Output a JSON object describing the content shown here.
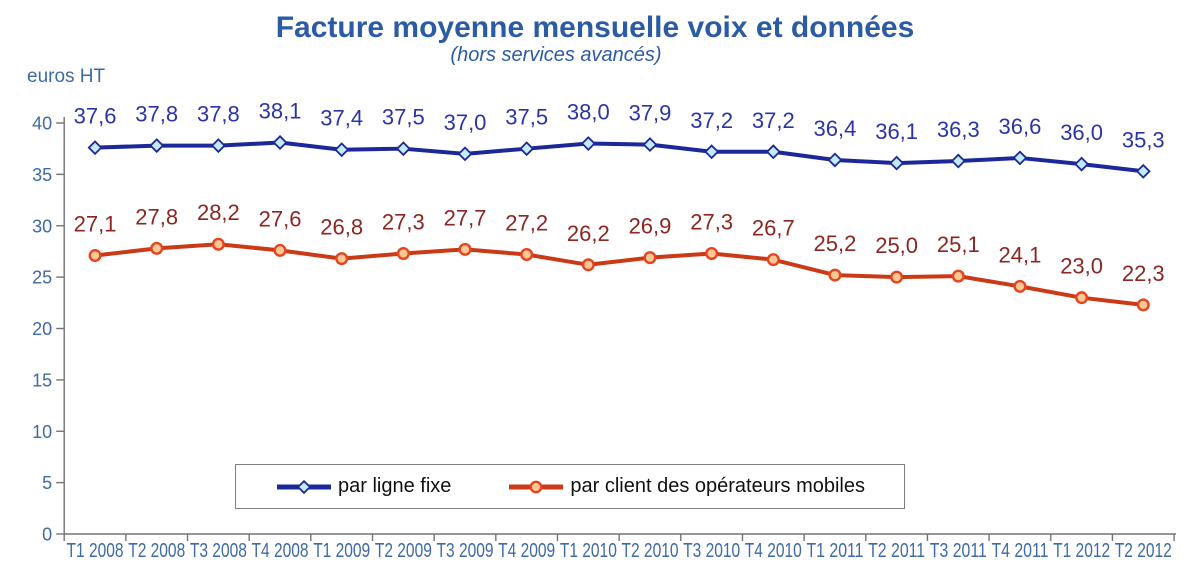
{
  "chart_data": {
    "type": "line",
    "title": "Facture moyenne mensuelle voix et données",
    "subtitle": "(hors services avancés)",
    "ylabel": "euros HT",
    "xlabel": "",
    "ylim": [
      0,
      40
    ],
    "y_ticks": [
      0,
      5,
      10,
      15,
      20,
      25,
      30,
      35,
      40
    ],
    "grid": false,
    "legend_position": "bottom-center-boxed",
    "decimal_separator": ",",
    "categories": [
      "T1 2008",
      "T2 2008",
      "T3 2008",
      "T4 2008",
      "T1 2009",
      "T2 2009",
      "T3 2009",
      "T4 2009",
      "T1 2010",
      "T2 2010",
      "T3 2010",
      "T4 2010",
      "T1 2011",
      "T2 2011",
      "T3 2011",
      "T4 2011",
      "T1 2012",
      "T2 2012"
    ],
    "series": [
      {
        "name": "par ligne fixe",
        "values": [
          37.6,
          37.8,
          37.8,
          38.1,
          37.4,
          37.5,
          37.0,
          37.5,
          38.0,
          37.9,
          37.2,
          37.2,
          36.4,
          36.1,
          36.3,
          36.6,
          36.0,
          35.3
        ],
        "line_color": "#1C2899",
        "marker": "diamond",
        "marker_fill": "#C4EAF6",
        "marker_stroke": "#1C2899",
        "label_color": "#2A35A5"
      },
      {
        "name": "par client des opérateurs mobiles",
        "values": [
          27.1,
          27.8,
          28.2,
          27.6,
          26.8,
          27.3,
          27.7,
          27.2,
          26.2,
          26.9,
          27.3,
          26.7,
          25.2,
          25.0,
          25.1,
          24.1,
          23.0,
          22.3
        ],
        "line_color": "#CB3A17",
        "marker": "circle",
        "marker_fill": "#FAC795",
        "marker_stroke": "#E5441F",
        "label_color": "#8B2621"
      }
    ]
  },
  "colors": {
    "title": "#2B5BA4",
    "tick_label": "#3E6AA6",
    "axis_line": "#737373",
    "legend_text": "#111111",
    "legend_border": "#7F7F7F",
    "background": "#FFFFFF"
  }
}
